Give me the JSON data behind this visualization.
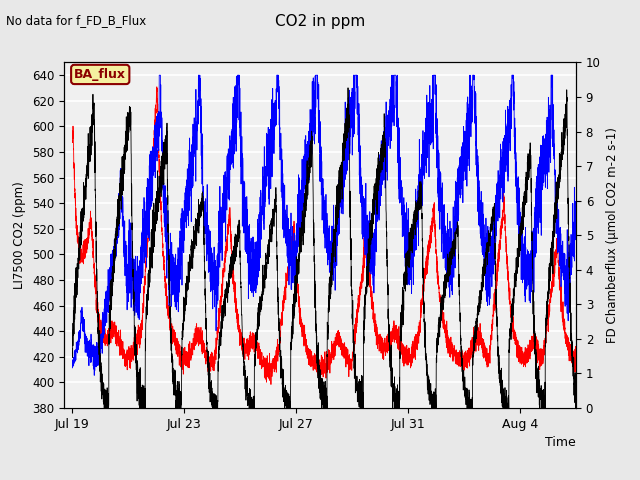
{
  "title": "CO2 in ppm",
  "top_left_text": "No data for f_FD_B_Flux",
  "annotation_box": "BA_flux",
  "xlabel": "Time",
  "ylabel_left": "LI7500 CO2 (ppm)",
  "ylabel_right": "FD Chamberflux (μmol CO2 m-2 s-1)",
  "ylim_left": [
    380,
    650
  ],
  "ylim_right": [
    0.0,
    10.0
  ],
  "yticks_left": [
    380,
    400,
    420,
    440,
    460,
    480,
    500,
    520,
    540,
    560,
    580,
    600,
    620,
    640
  ],
  "yticks_right": [
    0.0,
    1.0,
    2.0,
    3.0,
    4.0,
    5.0,
    6.0,
    7.0,
    8.0,
    9.0,
    10.0
  ],
  "xtick_labels": [
    "Jul 19",
    "Jul 23",
    "Jul 27",
    "Jul 31",
    "Aug 4"
  ],
  "bg_color": "#e8e8e8",
  "plot_bg_color": "#f0f0f0",
  "n_points": 5000,
  "seed": 42
}
